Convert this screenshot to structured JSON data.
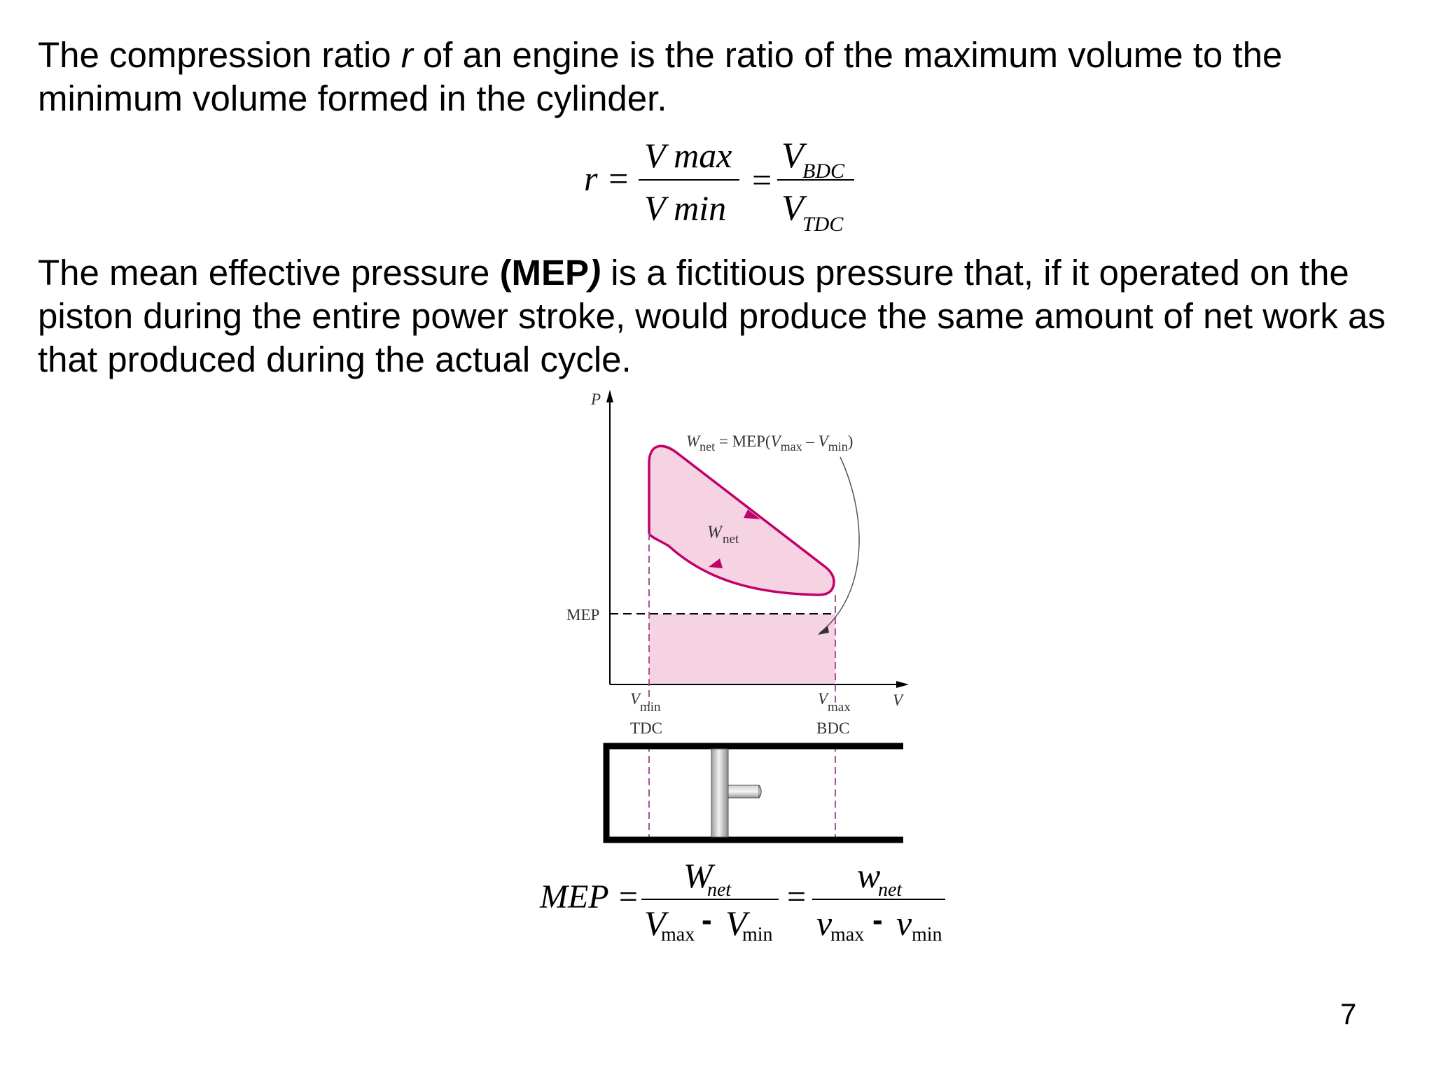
{
  "paragraph1": {
    "pre": "The compression ratio ",
    "var": "r",
    "post": " of an engine is the ratio of the maximum volume to the minimum volume formed in the cylinder."
  },
  "eq1": {
    "lhs": "r =",
    "num1": "V max",
    "den1": "V min",
    "eq": "=",
    "num2_base": "V",
    "num2_sub": "BDC",
    "den2_base": "V",
    "den2_sub": "TDC"
  },
  "paragraph2": {
    "pre": "The mean effective pressure ",
    "bold": "(MEP",
    "paren": ")",
    "post": " is a fictitious pressure that, if it operated on the piston during the entire power stroke, would produce the same amount of net work as that produced during the actual cycle."
  },
  "diagram": {
    "p_axis": "P",
    "v_axis": "V",
    "mep_label": "MEP",
    "wnet_label_base": "W",
    "wnet_label_sub": "net",
    "annotation": {
      "w": "W",
      "net": "net",
      "mid": " = MEP(",
      "v1": "V",
      "max": "max",
      "minus": " – ",
      "v2": "V",
      "min": "min",
      "close": ")"
    },
    "vmin_base": "V",
    "vmin_sub": "min",
    "vmax_base": "V",
    "vmax_sub": "max",
    "tdc": "TDC",
    "bdc": "BDC",
    "colors": {
      "curve": "#c2006b",
      "fill": "#f6d3e2",
      "dash": "#b05090"
    }
  },
  "eq2": {
    "lhs": "MEP =",
    "num1_base": "W",
    "num1_sub": "net",
    "den1_a": "V",
    "den1_a_sub": "max",
    "den1_minus": "-",
    "den1_b": "V",
    "den1_b_sub": "min",
    "eq": "=",
    "num2_base": "w",
    "num2_sub": "net",
    "den2_a": "v",
    "den2_a_sub": "max",
    "den2_minus": "-",
    "den2_b": "v",
    "den2_b_sub": "min"
  },
  "page_number": "7"
}
